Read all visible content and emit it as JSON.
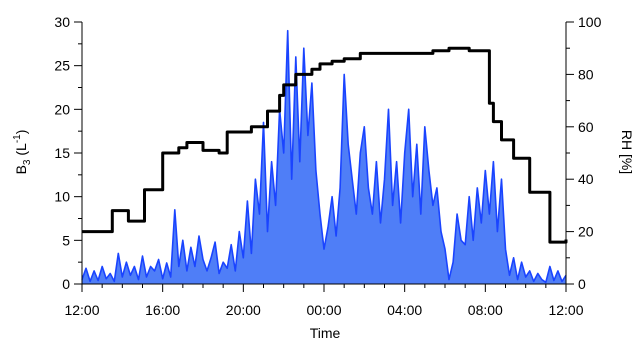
{
  "chart_data": {
    "type": "area",
    "xlabel": "Time",
    "ylabel_left": "B",
    "ylabel_left_sub": "3",
    "ylabel_left_unit_open": " (L",
    "ylabel_left_unit_sup": "-1",
    "ylabel_left_unit_close": ")",
    "ylabel_right": "RH [%]",
    "x_range_hours": [
      12,
      36
    ],
    "x_tick_labels": [
      "12:00",
      "16:00",
      "20:00",
      "00:00",
      "04:00",
      "08:00",
      "12:00"
    ],
    "x_tick_hours": [
      12,
      16,
      20,
      24,
      28,
      32,
      36
    ],
    "ylim_left": [
      0,
      30
    ],
    "left_ticks": [
      0,
      5,
      10,
      15,
      20,
      25,
      30
    ],
    "ylim_right": [
      0,
      100
    ],
    "right_ticks": [
      0,
      20,
      40,
      60,
      80,
      100
    ],
    "colors": {
      "b3_fill": "#4f7ef7",
      "b3_line": "#1a44ff",
      "rh_line": "#000000"
    },
    "series": [
      {
        "axis": "left",
        "style": "filled-area",
        "x": [
          12.0,
          12.2,
          12.4,
          12.6,
          12.8,
          13.0,
          13.2,
          13.4,
          13.6,
          13.8,
          14.0,
          14.2,
          14.4,
          14.6,
          14.8,
          15.0,
          15.2,
          15.4,
          15.6,
          15.8,
          16.0,
          16.2,
          16.4,
          16.6,
          16.8,
          17.0,
          17.2,
          17.4,
          17.6,
          17.8,
          18.0,
          18.2,
          18.4,
          18.6,
          18.8,
          19.0,
          19.2,
          19.4,
          19.6,
          19.8,
          20.0,
          20.2,
          20.4,
          20.6,
          20.8,
          21.0,
          21.2,
          21.4,
          21.6,
          21.8,
          22.0,
          22.2,
          22.4,
          22.6,
          22.8,
          23.0,
          23.2,
          23.4,
          23.6,
          23.8,
          24.0,
          24.2,
          24.4,
          24.6,
          24.8,
          25.0,
          25.2,
          25.4,
          25.6,
          25.8,
          26.0,
          26.2,
          26.4,
          26.6,
          26.8,
          27.0,
          27.2,
          27.4,
          27.6,
          27.8,
          28.0,
          28.2,
          28.4,
          28.6,
          28.8,
          29.0,
          29.2,
          29.4,
          29.6,
          29.8,
          30.0,
          30.2,
          30.4,
          30.6,
          30.8,
          31.0,
          31.2,
          31.4,
          31.6,
          31.8,
          32.0,
          32.2,
          32.4,
          32.6,
          32.8,
          33.0,
          33.2,
          33.4,
          33.6,
          33.8,
          34.0,
          34.2,
          34.4,
          34.6,
          34.8,
          35.0,
          35.2,
          35.4,
          35.6,
          35.8,
          36.0
        ],
        "values": [
          0.5,
          1.8,
          0.3,
          1.5,
          0.4,
          2.0,
          0.6,
          1.2,
          0.3,
          3.5,
          0.8,
          2.5,
          1.0,
          2.0,
          0.5,
          3.2,
          0.8,
          2.0,
          1.5,
          2.8,
          0.6,
          2.4,
          0.8,
          8.5,
          2.0,
          5.0,
          1.5,
          4.2,
          2.0,
          5.5,
          2.8,
          1.5,
          3.0,
          4.8,
          1.2,
          2.5,
          1.8,
          4.5,
          1.5,
          6.0,
          3.0,
          9.5,
          3.5,
          12.0,
          8.0,
          18.5,
          6.0,
          14.0,
          9.0,
          20.0,
          15.0,
          29.0,
          12.0,
          26.0,
          14.0,
          27.0,
          17.0,
          23.0,
          13.0,
          8.0,
          4.0,
          6.5,
          10.0,
          5.5,
          11.0,
          24.0,
          16.0,
          12.0,
          8.0,
          15.0,
          18.0,
          11.0,
          8.0,
          14.0,
          7.0,
          12.0,
          20.0,
          9.0,
          14.0,
          7.0,
          15.0,
          20.0,
          10.0,
          16.0,
          8.0,
          18.0,
          13.0,
          9.0,
          11.0,
          6.0,
          4.0,
          0.5,
          2.5,
          8.0,
          5.0,
          4.5,
          10.0,
          5.0,
          11.0,
          7.0,
          13.0,
          8.0,
          14.0,
          6.0,
          12.0,
          4.0,
          1.0,
          3.0,
          0.5,
          2.5,
          0.8,
          1.5,
          0.3,
          1.2,
          0.5,
          0.2,
          2.0,
          0.4,
          1.5,
          0.3,
          1.0
        ]
      },
      {
        "axis": "right",
        "style": "step-line",
        "x": [
          12.0,
          13.3,
          13.5,
          13.9,
          14.3,
          14.6,
          15.1,
          15.6,
          16.0,
          16.2,
          16.6,
          16.8,
          17.2,
          17.6,
          18.0,
          18.4,
          18.8,
          19.2,
          19.8,
          20.0,
          20.4,
          21.2,
          21.8,
          22.0,
          22.6,
          23.4,
          23.8,
          24.4,
          25.0,
          25.4,
          25.8,
          26.2,
          27.2,
          27.6,
          28.0,
          28.4,
          29.4,
          29.8,
          30.2,
          30.4,
          31.2,
          31.6,
          32.0,
          32.2,
          32.4,
          32.8,
          33.4,
          34.2,
          34.4,
          34.6,
          35.2,
          35.6,
          36.0
        ],
        "values": [
          20,
          20,
          28,
          28,
          24,
          24,
          36,
          36,
          50,
          50,
          50,
          52,
          54,
          54,
          51,
          51,
          50,
          58,
          58,
          58,
          60,
          66,
          72,
          76,
          80,
          82,
          84,
          85,
          86,
          86,
          88,
          88,
          88,
          88,
          88,
          88,
          89,
          89,
          90,
          90,
          89,
          89,
          89,
          69,
          62,
          55,
          48,
          35,
          35,
          35,
          16,
          16,
          17
        ]
      }
    ]
  }
}
